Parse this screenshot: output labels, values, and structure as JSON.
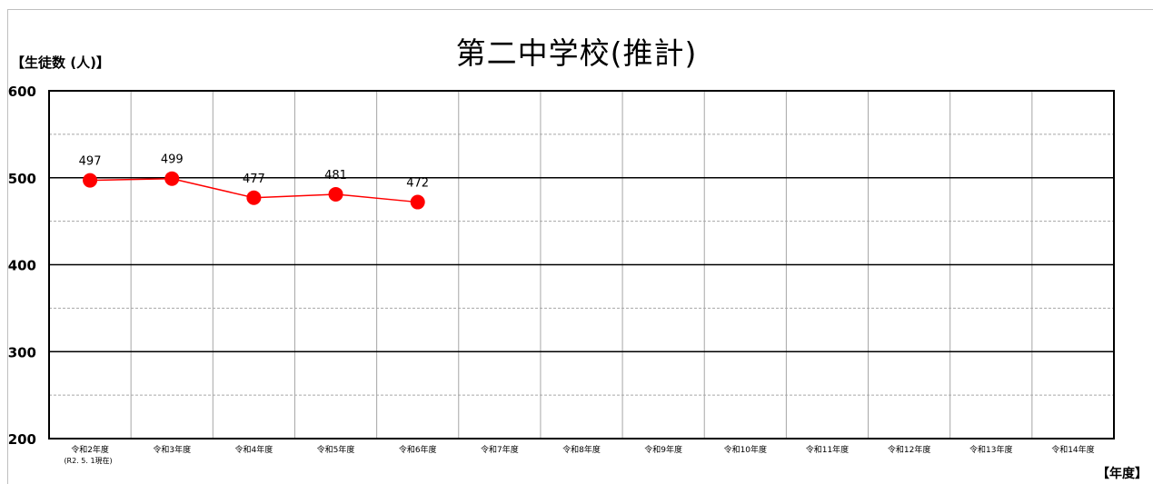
{
  "chart_data": {
    "type": "line",
    "title": "第二中学校(推計)",
    "ylabel": "【生徒数 (人)】",
    "xlabel": "【年度】",
    "ylim": [
      200,
      600
    ],
    "yticks": [
      200,
      300,
      400,
      500,
      600
    ],
    "grid": true,
    "categories": [
      "令和2年度",
      "令和3年度",
      "令和4年度",
      "令和5年度",
      "令和6年度",
      "令和7年度",
      "令和8年度",
      "令和9年度",
      "令和10年度",
      "令和11年度",
      "令和12年度",
      "令和13年度",
      "令和14年度"
    ],
    "category_sublabels": [
      "(R2. 5. 1現在)",
      "",
      "",
      "",
      "",
      "",
      "",
      "",
      "",
      "",
      "",
      "",
      ""
    ],
    "series": [
      {
        "values": [
          497,
          499,
          477,
          481,
          472,
          null,
          null,
          null,
          null,
          null,
          null,
          null,
          null
        ]
      }
    ],
    "colors": {
      "series": "#ff0000",
      "axis": "#000000",
      "minor_grid": "#a6a6a6",
      "vertical_grid": "#a6a6a6"
    }
  }
}
